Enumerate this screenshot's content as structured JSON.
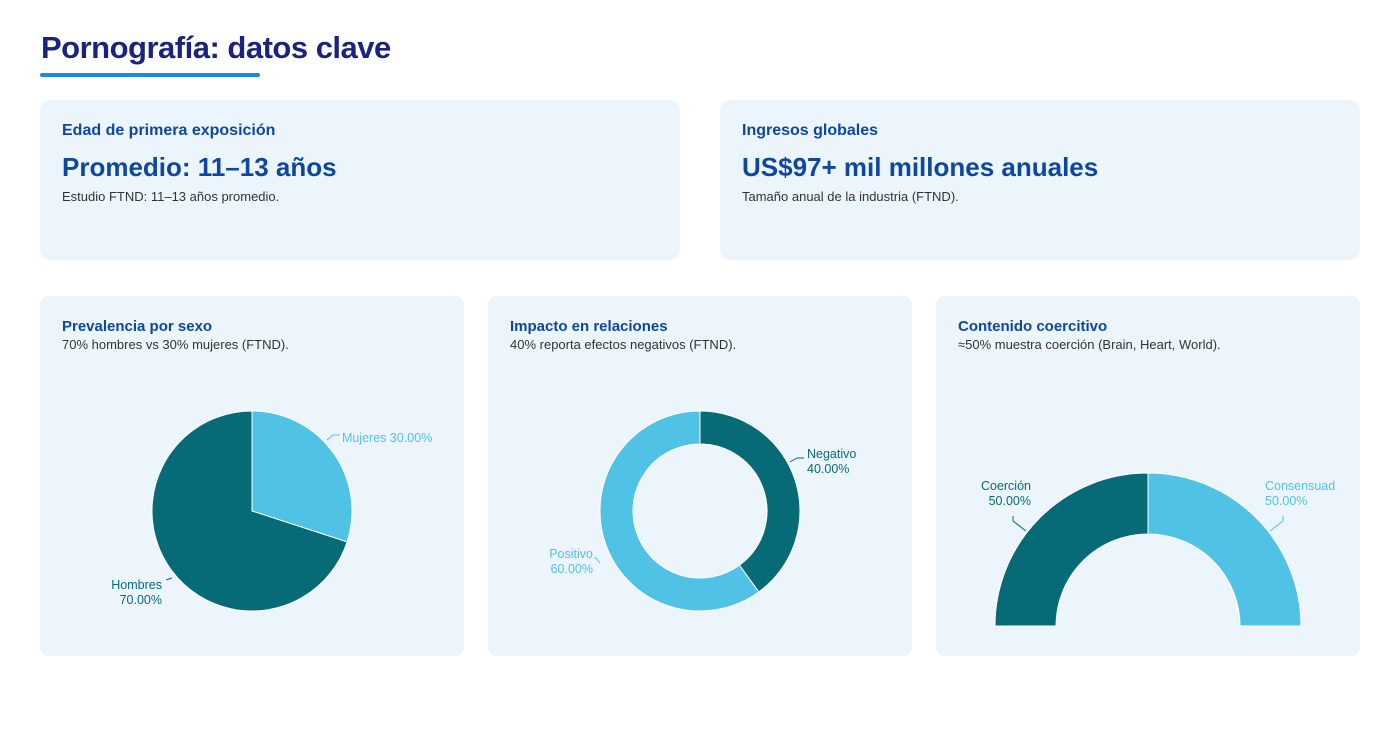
{
  "header": {
    "title": "Pornografía: datos clave"
  },
  "kpis": [
    {
      "label": "Edad de primera exposición",
      "value": "Promedio: 11–13 años",
      "note": "Estudio FTND: 11–13 años promedio."
    },
    {
      "label": "Ingresos globales",
      "value": "US$97+ mil millones anuales",
      "note": "Tamaño anual de la industria (FTND)."
    }
  ],
  "colors": {
    "dark": "#066b76",
    "light": "#50c2e5"
  },
  "chart_data": [
    {
      "type": "pie",
      "title": "Prevalencia por sexo",
      "subtitle": "70% hombres vs 30% mujeres (FTND).",
      "slices": [
        {
          "label": "Mujeres",
          "value": 30,
          "display": "30.00%",
          "color": "#50c2e5"
        },
        {
          "label": "Hombres",
          "value": 70,
          "display": "70.00%",
          "color": "#066b76"
        }
      ]
    },
    {
      "type": "pie",
      "variant": "donut",
      "title": "Impacto en relaciones",
      "subtitle": "40% reporta efectos negativos (FTND).",
      "slices": [
        {
          "label": "Negativo",
          "value": 40,
          "display": "40.00%",
          "color": "#066b76"
        },
        {
          "label": "Positivo",
          "value": 60,
          "display": "60.00%",
          "color": "#50c2e5"
        }
      ]
    },
    {
      "type": "pie",
      "variant": "half-donut",
      "title": "Contenido coercitivo",
      "subtitle": "≈50% muestra coerción (Brain, Heart, World).",
      "slices": [
        {
          "label": "Coerción",
          "value": 50,
          "display": "50.00%",
          "color": "#066b76"
        },
        {
          "label": "Consensuad",
          "value": 50,
          "display": "50.00%",
          "color": "#50c2e5"
        }
      ]
    }
  ]
}
